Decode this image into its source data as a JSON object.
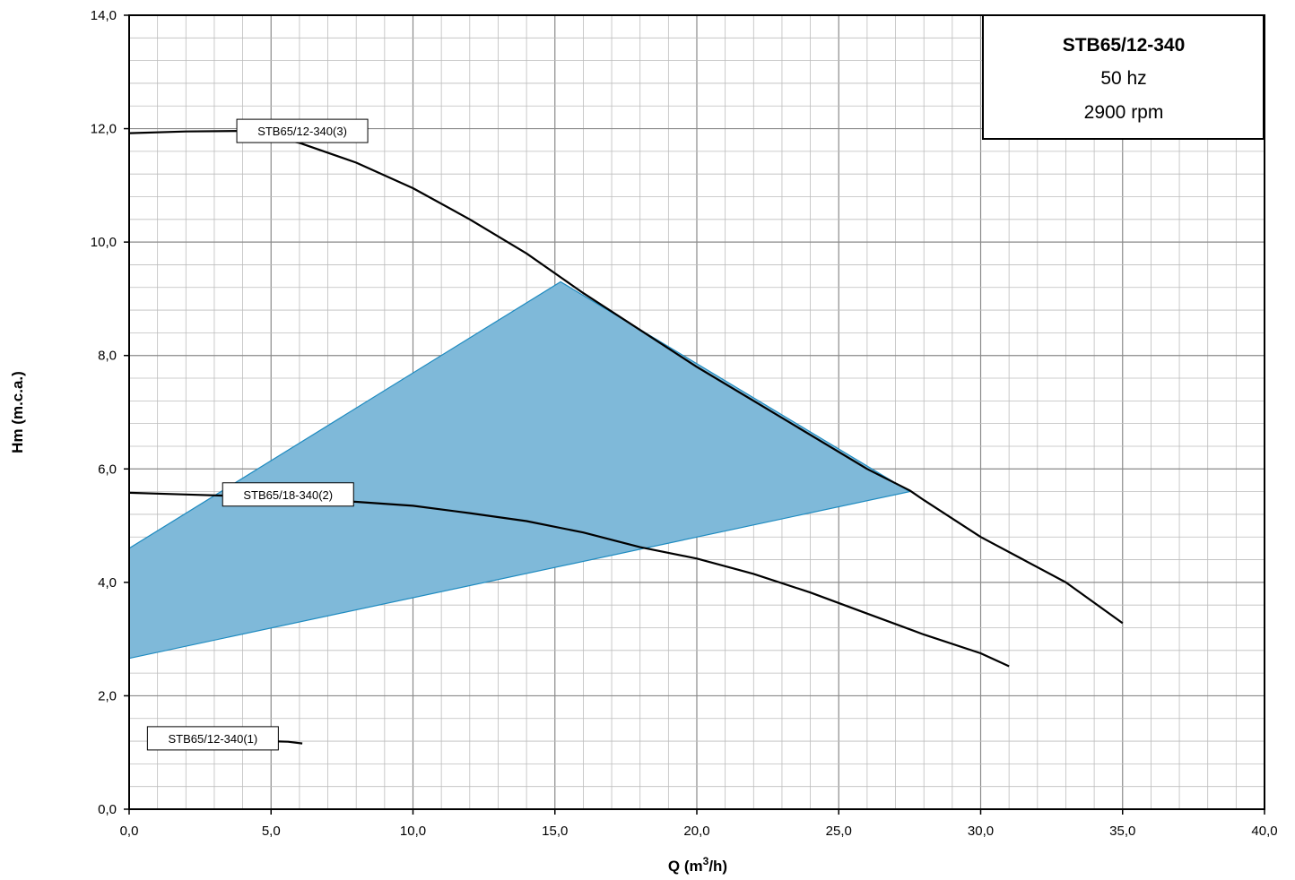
{
  "chart_data": {
    "type": "line",
    "title": "",
    "xlabel": "Q (m",
    "xlabel_sup": "3",
    "xlabel_tail": "/h)",
    "ylabel": "Hm (m.c.a.)",
    "xlim": [
      0,
      40
    ],
    "ylim": [
      0,
      14
    ],
    "x_ticks": [
      0,
      5,
      10,
      15,
      20,
      25,
      30,
      35,
      40
    ],
    "y_ticks": [
      0,
      2,
      4,
      6,
      8,
      10,
      12,
      14
    ],
    "x_tick_labels": [
      "0,0",
      "5,0",
      "10,0",
      "15,0",
      "20,0",
      "25,0",
      "30,0",
      "35,0",
      "40,0"
    ],
    "y_tick_labels": [
      "0,0",
      "2,0",
      "4,0",
      "6,0",
      "8,0",
      "10,0",
      "12,0",
      "14,0"
    ],
    "x_minor_step": 1,
    "y_minor_step": 0.4,
    "grid": true,
    "info_box": {
      "title": "STB65/12-340",
      "lines": [
        "50 hz",
        "2900 rpm"
      ],
      "position": "top-right"
    },
    "operating_area": {
      "color": "#7fb9d9",
      "stroke": "#1f8bc0",
      "points": [
        [
          0,
          2.66
        ],
        [
          0,
          4.6
        ],
        [
          15.2,
          9.3
        ],
        [
          27.5,
          5.6
        ]
      ]
    },
    "series": [
      {
        "name": "STB65/12-340(3)",
        "label": "STB65/12-340(3)",
        "label_at": [
          6.1,
          11.96
        ],
        "color": "#000000",
        "points": [
          [
            0,
            11.92
          ],
          [
            2,
            11.95
          ],
          [
            4,
            11.96
          ],
          [
            6,
            11.75
          ],
          [
            8,
            11.4
          ],
          [
            10,
            10.95
          ],
          [
            12,
            10.4
          ],
          [
            14,
            9.8
          ],
          [
            15.2,
            9.38
          ],
          [
            16,
            9.1
          ],
          [
            18,
            8.45
          ],
          [
            20,
            7.8
          ],
          [
            22,
            7.2
          ],
          [
            24,
            6.6
          ],
          [
            26,
            6.0
          ],
          [
            27.5,
            5.62
          ],
          [
            28,
            5.45
          ],
          [
            30,
            4.8
          ],
          [
            31.5,
            4.4
          ],
          [
            33,
            4.0
          ],
          [
            35,
            3.28
          ]
        ]
      },
      {
        "name": "STB65/18-340(2)",
        "label": "STB65/18-340(2)",
        "label_at": [
          5.6,
          5.55
        ],
        "color": "#000000",
        "points": [
          [
            0,
            5.58
          ],
          [
            2,
            5.55
          ],
          [
            4,
            5.52
          ],
          [
            6,
            5.48
          ],
          [
            8,
            5.42
          ],
          [
            10,
            5.35
          ],
          [
            12,
            5.22
          ],
          [
            14,
            5.08
          ],
          [
            16,
            4.88
          ],
          [
            18,
            4.62
          ],
          [
            20,
            4.42
          ],
          [
            22,
            4.15
          ],
          [
            24,
            3.82
          ],
          [
            26,
            3.45
          ],
          [
            28,
            3.08
          ],
          [
            30,
            2.75
          ],
          [
            31,
            2.52
          ]
        ]
      },
      {
        "name": "STB65/12-340(1)",
        "label": "STB65/12-340(1)",
        "label_at": [
          2.95,
          1.25
        ],
        "color": "#000000",
        "points": [
          [
            2.95,
            1.28
          ],
          [
            4,
            1.23
          ],
          [
            5,
            1.2
          ],
          [
            5.6,
            1.19
          ],
          [
            6.1,
            1.16
          ]
        ]
      }
    ]
  }
}
